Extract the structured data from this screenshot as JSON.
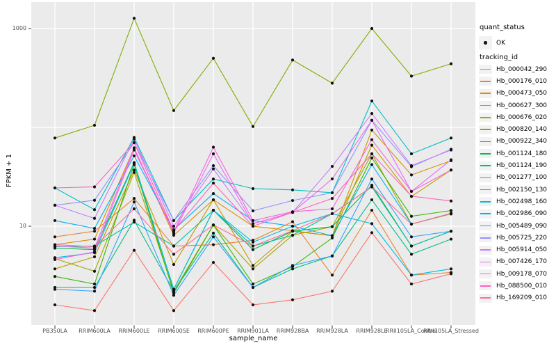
{
  "chart_data": {
    "type": "line",
    "title": "",
    "xlabel": "sample_name",
    "ylabel": "FPKM + 1",
    "y_scale": "log10",
    "ylim": [
      0.95,
      1850
    ],
    "grid": "major-white-on-grey",
    "panel_background": "#EBEBEB",
    "gridline_color": "#FFFFFF",
    "point_color": "#111111",
    "legend_key_background": "#F2F2F2",
    "y_ticks": [
      {
        "value": 1000,
        "label": "1000"
      },
      {
        "value": 10,
        "label": "10"
      }
    ],
    "y_gridlines": [
      10,
      100,
      1000
    ],
    "categories": [
      "PB350LA",
      "RRIM600LA",
      "RRIM600LE",
      "RRIM600SE",
      "RRIM600PE",
      "RRIM901LA",
      "RRIM928BA",
      "RRIM928LA",
      "RRIM928LE",
      "RRII105LA_Control",
      "RRII105LA_Stressed"
    ],
    "series": [
      {
        "name": "Hb_000042_290",
        "color": "#F8766D",
        "values": [
          1.6,
          1.4,
          5.7,
          1.4,
          4.3,
          1.6,
          1.8,
          2.2,
          8.6,
          2.6,
          3.3
        ]
      },
      {
        "name": "Hb_000176_010",
        "color": "#EA8331",
        "values": [
          7.8,
          8.9,
          19.1,
          6.3,
          6.5,
          7.2,
          11.1,
          3.2,
          14.5,
          3.2,
          3.4
        ]
      },
      {
        "name": "Hb_000473_050",
        "color": "#D89000",
        "values": [
          6.5,
          7.4,
          62,
          8.1,
          18.5,
          10,
          9,
          8,
          94,
          33,
          46
        ]
      },
      {
        "name": "Hb_000627_300",
        "color": "#C09B00",
        "values": [
          3.7,
          4.9,
          37,
          4.1,
          18.5,
          4,
          8.9,
          8,
          66,
          20,
          37
        ]
      },
      {
        "name": "Hb_000676_020",
        "color": "#A3A500",
        "values": [
          4.7,
          3.5,
          35,
          2.2,
          10.3,
          3.7,
          8.1,
          9.9,
          54,
          10.5,
          13.3
        ]
      },
      {
        "name": "Hb_000820_140",
        "color": "#7CAE00",
        "values": [
          78,
          105,
          1270,
          148,
          500,
          102,
          480,
          280,
          1000,
          330,
          440
        ]
      },
      {
        "name": "Hb_000922_340",
        "color": "#39B600",
        "values": [
          3.1,
          2.6,
          42,
          2.1,
          10.3,
          2.6,
          3.9,
          7.6,
          49,
          12.6,
          14.4
        ]
      },
      {
        "name": "Hb_001124_180",
        "color": "#00BB4E",
        "values": [
          6,
          5.8,
          44,
          2.3,
          14.5,
          5.8,
          8.9,
          9.9,
          26,
          6.3,
          8.9
        ]
      },
      {
        "name": "Hb_001124_190",
        "color": "#00BF7D",
        "values": [
          2.4,
          2.4,
          11.5,
          2.2,
          8.5,
          2.4,
          3.7,
          5,
          18.5,
          5.2,
          7.4
        ]
      },
      {
        "name": "Hb_001277_100",
        "color": "#00C1A3",
        "values": [
          6.2,
          6.3,
          11,
          6.3,
          14.5,
          6.3,
          8.1,
          13.4,
          25,
          6.3,
          8.9
        ]
      },
      {
        "name": "Hb_002150_130",
        "color": "#00BFC4",
        "values": [
          24.4,
          14.7,
          79,
          11.4,
          30,
          24,
          23.3,
          21.8,
          185,
          54,
          78
        ]
      },
      {
        "name": "Hb_002498_160",
        "color": "#00BAE0",
        "values": [
          4.8,
          5.4,
          43,
          2.3,
          14.5,
          6.9,
          10,
          13.4,
          10.6,
          3.2,
          3.7
        ]
      },
      {
        "name": "Hb_002986_090",
        "color": "#00B0F6",
        "values": [
          11.4,
          9.5,
          51.5,
          9.2,
          21.4,
          11.4,
          10,
          8,
          42,
          10.5,
          13.5
        ]
      },
      {
        "name": "Hb_005489_090",
        "color": "#35A2FF",
        "values": [
          2.3,
          2.2,
          17.6,
          2,
          7.8,
          2.4,
          4,
          5,
          30,
          7.8,
          8.9
        ]
      },
      {
        "name": "Hb_005725_220",
        "color": "#9590FF",
        "values": [
          16.3,
          18.3,
          70,
          11.4,
          41,
          14.3,
          18.2,
          21.8,
          118,
          40,
          60
        ]
      },
      {
        "name": "Hb_005914_050",
        "color": "#C77CFF",
        "values": [
          16.3,
          12,
          76,
          10,
          38,
          10.6,
          13.8,
          40.3,
          138,
          41,
          59
        ]
      },
      {
        "name": "Hb_007426_170",
        "color": "#E76BF3",
        "values": [
          6.3,
          6,
          62,
          8.5,
          54,
          10.6,
          13.8,
          30.1,
          118,
          22.5,
          47
        ]
      },
      {
        "name": "Hb_009178_070",
        "color": "#FA62DB",
        "values": [
          4.6,
          5.5,
          59,
          8.8,
          63,
          11.4,
          14,
          15,
          75,
          22.5,
          37
        ]
      },
      {
        "name": "Hb_088500_010",
        "color": "#FF62BC",
        "values": [
          24.4,
          25,
          70,
          9,
          27.3,
          10,
          13.8,
          19.1,
          54,
          20.1,
          18
        ]
      },
      {
        "name": "Hb_169209_010",
        "color": "#FF6A98",
        "values": [
          6.5,
          6.2,
          15,
          5.2,
          10.3,
          6.3,
          9,
          13.4,
          25,
          10.5,
          13.5
        ]
      }
    ],
    "legend": {
      "position": "right",
      "quant_status": {
        "title": "quant_status",
        "items": [
          {
            "label": "OK",
            "marker": "point"
          }
        ]
      },
      "tracking_id_title": "tracking_id"
    }
  }
}
